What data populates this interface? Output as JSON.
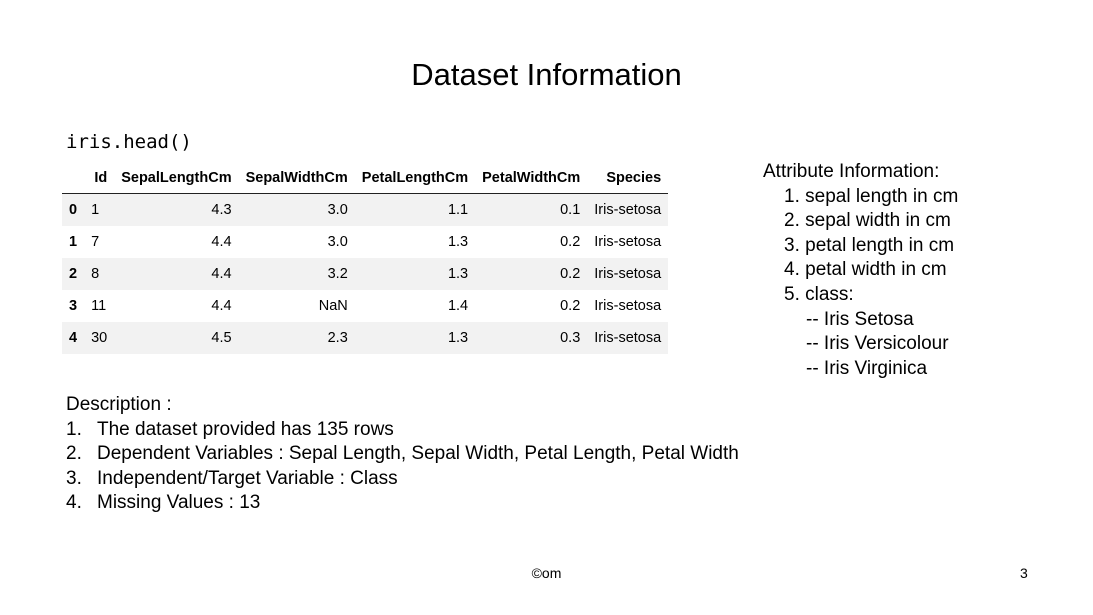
{
  "title": "Dataset Information",
  "code_label": "iris.head()",
  "table": {
    "columns": [
      "",
      "Id",
      "SepalLengthCm",
      "SepalWidthCm",
      "PetalLengthCm",
      "PetalWidthCm",
      "Species"
    ],
    "rows": [
      [
        "0",
        "1",
        "4.3",
        "3.0",
        "1.1",
        "0.1",
        "Iris-setosa"
      ],
      [
        "1",
        "7",
        "4.4",
        "3.0",
        "1.3",
        "0.2",
        "Iris-setosa"
      ],
      [
        "2",
        "8",
        "4.4",
        "3.2",
        "1.3",
        "0.2",
        "Iris-setosa"
      ],
      [
        "3",
        "11",
        "4.4",
        "NaN",
        "1.4",
        "0.2",
        "Iris-setosa"
      ],
      [
        "4",
        "30",
        "4.5",
        "2.3",
        "1.3",
        "0.3",
        "Iris-setosa"
      ]
    ]
  },
  "attributes": {
    "heading": "Attribute Information:",
    "items": [
      "1. sepal length in cm",
      "2. sepal width in cm",
      "3. petal length in cm",
      "4. petal width in cm",
      "5. class:"
    ],
    "class_values": [
      "-- Iris Setosa",
      "-- Iris Versicolour",
      "-- Iris Virginica"
    ]
  },
  "description": {
    "heading": "Description :",
    "items": [
      {
        "num": "1.",
        "text": "The dataset provided has 135 rows"
      },
      {
        "num": "2.",
        "text": "Dependent Variables : Sepal Length, Sepal Width, Petal Length, Petal Width"
      },
      {
        "num": "3.",
        "text": "Independent/Target Variable : Class"
      },
      {
        "num": "4.",
        "text": "Missing Values : 13"
      }
    ]
  },
  "footer": {
    "text": "©om",
    "page_number": "3"
  }
}
